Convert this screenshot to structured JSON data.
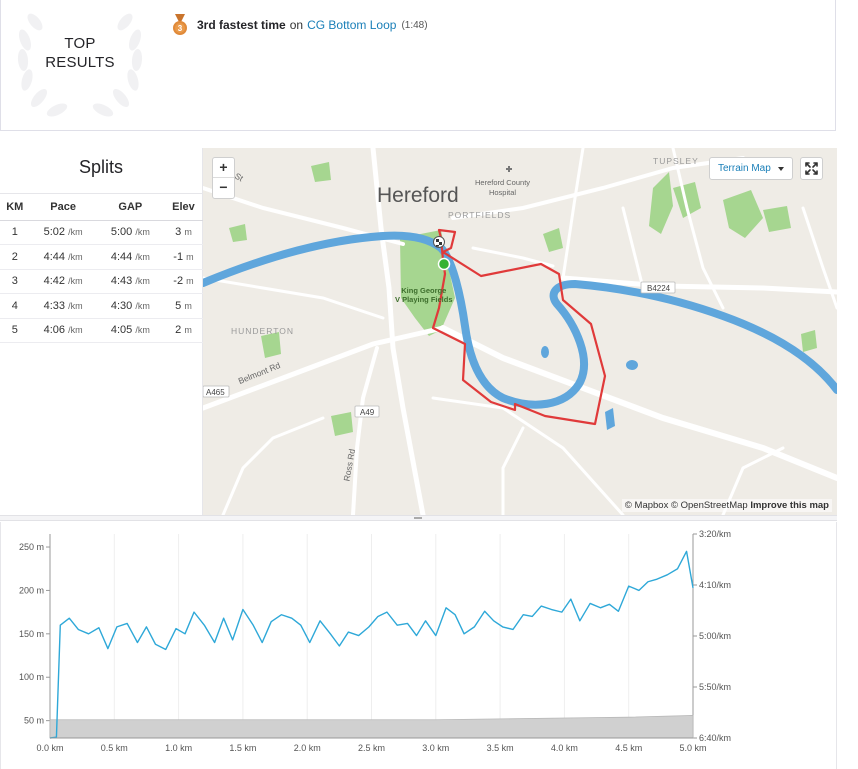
{
  "top_results": {
    "badge_line1": "TOP",
    "badge_line2": "RESULTS",
    "achievement": {
      "medal_number": "3",
      "title": "3rd fastest time",
      "on": "on",
      "segment": "CG Bottom Loop",
      "time": "(1:48)"
    }
  },
  "splits": {
    "title": "Splits",
    "headers": [
      "KM",
      "Pace",
      "GAP",
      "Elev"
    ],
    "pace_unit": "/km",
    "elev_unit": "m",
    "rows": [
      {
        "km": "1",
        "pace": "5:02",
        "gap": "5:00",
        "elev": "3"
      },
      {
        "km": "2",
        "pace": "4:44",
        "gap": "4:44",
        "elev": "-1"
      },
      {
        "km": "3",
        "pace": "4:42",
        "gap": "4:43",
        "elev": "-2"
      },
      {
        "km": "4",
        "pace": "4:33",
        "gap": "4:30",
        "elev": "5"
      },
      {
        "km": "5",
        "pace": "4:06",
        "gap": "4:05",
        "elev": "2"
      }
    ]
  },
  "map": {
    "zoom_in": "+",
    "zoom_out": "−",
    "map_type": "Terrain Map",
    "attribution_mapbox": "© Mapbox",
    "attribution_osm": "© OpenStreetMap",
    "attribution_improve": "Improve this map",
    "labels": {
      "city": "Hereford",
      "hospital": "Hereford County\nHospital",
      "portfields": "PORTFIELDS",
      "tupsley": "TUPSLEY",
      "park": "King George\nV Playing Fields",
      "hunderton": "HUNDERTON",
      "belmont": "Belmont Rd",
      "ross": "Ross Rd",
      "a49": "A49",
      "a465": "A465",
      "b4224": "B4224",
      "st": "St"
    },
    "colors": {
      "route": "#e03a3a",
      "river": "#5fa6dc",
      "park": "#a6d690",
      "land": "#efece6"
    }
  },
  "chart_data": {
    "type": "line",
    "xlabel": "",
    "x_ticks": [
      "0.0 km",
      "0.5 km",
      "1.0 km",
      "1.5 km",
      "2.0 km",
      "2.5 km",
      "3.0 km",
      "3.5 km",
      "4.0 km",
      "4.5 km",
      "5.0 km"
    ],
    "xlim": [
      0,
      5.0
    ],
    "y_left_ticks": [
      "250 m",
      "200 m",
      "150 m",
      "100 m",
      "50 m"
    ],
    "y_left_values": [
      250,
      200,
      150,
      100,
      50
    ],
    "ylim_left": [
      30,
      265
    ],
    "y_right_ticks": [
      "3:20/km",
      "4:10/km",
      "5:00/km",
      "5:50/km",
      "6:40/km"
    ],
    "series": [
      {
        "kind": "elevation-area",
        "color": "#d0d0d0",
        "x": [
          0,
          0.5,
          1.0,
          1.5,
          2.0,
          2.5,
          3.0,
          3.5,
          4.0,
          4.5,
          5.0
        ],
        "y": [
          51,
          51,
          51,
          51,
          51,
          51,
          51,
          52,
          53,
          54,
          56
        ]
      },
      {
        "kind": "pace-line",
        "color": "#2ea8d8",
        "x": [
          0,
          0.05,
          0.08,
          0.15,
          0.22,
          0.3,
          0.38,
          0.45,
          0.52,
          0.6,
          0.68,
          0.75,
          0.82,
          0.9,
          0.98,
          1.05,
          1.12,
          1.2,
          1.28,
          1.35,
          1.42,
          1.5,
          1.58,
          1.65,
          1.72,
          1.8,
          1.88,
          1.95,
          2.02,
          2.1,
          2.18,
          2.25,
          2.32,
          2.4,
          2.48,
          2.55,
          2.62,
          2.7,
          2.78,
          2.85,
          2.92,
          3.0,
          3.08,
          3.15,
          3.22,
          3.3,
          3.38,
          3.45,
          3.52,
          3.6,
          3.68,
          3.75,
          3.82,
          3.9,
          3.98,
          4.05,
          4.12,
          4.2,
          4.28,
          4.35,
          4.42,
          4.5,
          4.58,
          4.65,
          4.72,
          4.8,
          4.88,
          4.95,
          5.0
        ],
        "y": [
          30,
          31,
          160,
          168,
          155,
          150,
          157,
          133,
          158,
          162,
          140,
          158,
          138,
          132,
          156,
          150,
          175,
          160,
          140,
          168,
          143,
          178,
          160,
          140,
          164,
          172,
          168,
          160,
          140,
          165,
          150,
          136,
          152,
          148,
          158,
          170,
          175,
          160,
          162,
          148,
          165,
          148,
          180,
          172,
          150,
          158,
          176,
          165,
          158,
          155,
          172,
          170,
          182,
          178,
          175,
          190,
          165,
          185,
          180,
          184,
          176,
          205,
          200,
          210,
          213,
          218,
          225,
          245,
          203
        ]
      }
    ]
  }
}
